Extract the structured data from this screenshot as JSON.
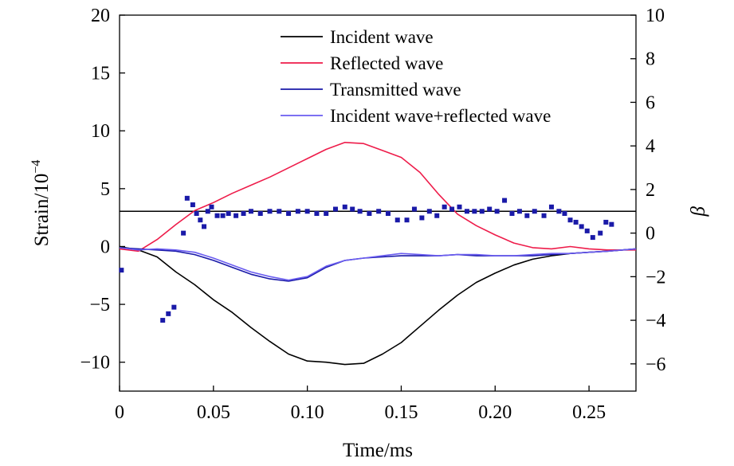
{
  "chart_data": {
    "type": "line",
    "xlabel": "Time/ms",
    "ylabel_left": "Strain/10",
    "ylabel_left_exponent": "−4",
    "ylabel_right": "β",
    "xlim": [
      0,
      0.275
    ],
    "ylim_left": [
      -12.5,
      20
    ],
    "ylim_right": [
      -7.25,
      10
    ],
    "x_ticks": [
      0,
      0.05,
      0.1,
      0.15,
      0.2,
      0.25
    ],
    "x_tick_labels": [
      "0",
      "0.05",
      "0.10",
      "0.15",
      "0.20",
      "0.25"
    ],
    "y_left_ticks": [
      -10,
      -5,
      0,
      5,
      10,
      15,
      20
    ],
    "y_left_tick_labels": [
      "−10",
      "−5",
      "0",
      "5",
      "10",
      "15",
      "20"
    ],
    "y_right_ticks": [
      -6,
      -4,
      -2,
      0,
      2,
      4,
      6,
      8,
      10
    ],
    "y_right_tick_labels": [
      "−6",
      "−4",
      "−2",
      "0",
      "2",
      "4",
      "6",
      "8",
      "10"
    ],
    "legend_position": "top-center",
    "reference_line": {
      "axis": "right",
      "value": 1.0,
      "color": "#000000"
    },
    "series": [
      {
        "name": "Incident wave",
        "axis": "left",
        "color": "#000000",
        "x": [
          0,
          0.01,
          0.02,
          0.03,
          0.04,
          0.05,
          0.06,
          0.07,
          0.08,
          0.09,
          0.1,
          0.11,
          0.12,
          0.13,
          0.14,
          0.15,
          0.16,
          0.17,
          0.18,
          0.19,
          0.2,
          0.21,
          0.22,
          0.23,
          0.24,
          0.25,
          0.26,
          0.275
        ],
        "y": [
          0,
          -0.3,
          -0.9,
          -2.2,
          -3.3,
          -4.6,
          -5.7,
          -7.0,
          -8.2,
          -9.3,
          -9.9,
          -10.0,
          -10.2,
          -10.1,
          -9.3,
          -8.3,
          -6.9,
          -5.5,
          -4.2,
          -3.1,
          -2.3,
          -1.6,
          -1.1,
          -0.8,
          -0.6,
          -0.5,
          -0.4,
          -0.2
        ]
      },
      {
        "name": "Reflected wave",
        "axis": "left",
        "color": "#ee1c4a",
        "x": [
          0,
          0.01,
          0.02,
          0.03,
          0.04,
          0.05,
          0.06,
          0.07,
          0.08,
          0.09,
          0.1,
          0.11,
          0.12,
          0.13,
          0.14,
          0.15,
          0.16,
          0.17,
          0.18,
          0.19,
          0.2,
          0.21,
          0.22,
          0.23,
          0.24,
          0.25,
          0.26,
          0.275
        ],
        "y": [
          -0.2,
          -0.4,
          0.6,
          1.9,
          3.1,
          3.8,
          4.6,
          5.3,
          6.0,
          6.8,
          7.6,
          8.4,
          9.0,
          8.9,
          8.3,
          7.7,
          6.4,
          4.5,
          2.8,
          1.8,
          1.0,
          0.3,
          -0.1,
          -0.2,
          0.0,
          -0.2,
          -0.3,
          -0.3
        ]
      },
      {
        "name": "Transmitted wave",
        "axis": "left",
        "color": "#1a1aa8",
        "x": [
          0,
          0.01,
          0.02,
          0.03,
          0.04,
          0.05,
          0.06,
          0.07,
          0.08,
          0.09,
          0.1,
          0.11,
          0.12,
          0.13,
          0.14,
          0.15,
          0.16,
          0.17,
          0.18,
          0.19,
          0.2,
          0.21,
          0.22,
          0.23,
          0.24,
          0.25,
          0.26,
          0.275
        ],
        "y": [
          -0.1,
          -0.2,
          -0.3,
          -0.4,
          -0.7,
          -1.2,
          -1.8,
          -2.4,
          -2.8,
          -3.0,
          -2.7,
          -1.8,
          -1.2,
          -1.0,
          -0.9,
          -0.8,
          -0.8,
          -0.8,
          -0.7,
          -0.8,
          -0.8,
          -0.8,
          -0.8,
          -0.7,
          -0.6,
          -0.5,
          -0.4,
          -0.2
        ]
      },
      {
        "name": "Incident wave+reflected wave",
        "axis": "left",
        "color": "#6a5cf0",
        "x": [
          0,
          0.01,
          0.02,
          0.03,
          0.04,
          0.05,
          0.06,
          0.07,
          0.08,
          0.09,
          0.1,
          0.11,
          0.12,
          0.13,
          0.14,
          0.15,
          0.16,
          0.17,
          0.18,
          0.19,
          0.2,
          0.21,
          0.22,
          0.23,
          0.24,
          0.25,
          0.26,
          0.275
        ],
        "y": [
          -0.1,
          -0.3,
          -0.2,
          -0.3,
          -0.5,
          -1.0,
          -1.6,
          -2.2,
          -2.6,
          -2.9,
          -2.6,
          -1.7,
          -1.2,
          -1.0,
          -0.8,
          -0.6,
          -0.7,
          -0.8,
          -0.7,
          -0.7,
          -0.8,
          -0.8,
          -0.7,
          -0.6,
          -0.6,
          -0.5,
          -0.4,
          -0.2
        ]
      },
      {
        "name": "β",
        "axis": "right",
        "type": "scatter",
        "color": "#1a1aa8",
        "x": [
          0.001,
          0.023,
          0.026,
          0.029,
          0.034,
          0.036,
          0.039,
          0.041,
          0.043,
          0.045,
          0.047,
          0.049,
          0.052,
          0.055,
          0.058,
          0.062,
          0.066,
          0.07,
          0.075,
          0.08,
          0.085,
          0.09,
          0.095,
          0.1,
          0.105,
          0.11,
          0.115,
          0.12,
          0.124,
          0.128,
          0.133,
          0.138,
          0.143,
          0.148,
          0.153,
          0.157,
          0.161,
          0.165,
          0.169,
          0.173,
          0.177,
          0.181,
          0.185,
          0.189,
          0.193,
          0.197,
          0.201,
          0.205,
          0.209,
          0.213,
          0.217,
          0.221,
          0.226,
          0.23,
          0.234,
          0.237,
          0.24,
          0.243,
          0.246,
          0.249,
          0.252,
          0.256,
          0.259,
          0.262
        ],
        "y": [
          -1.7,
          -4.0,
          -3.7,
          -3.4,
          0.0,
          1.6,
          1.3,
          0.9,
          0.6,
          0.3,
          1.0,
          1.2,
          0.8,
          0.8,
          0.9,
          0.8,
          0.9,
          1.0,
          0.9,
          1.0,
          1.0,
          0.9,
          1.0,
          1.0,
          0.9,
          0.9,
          1.1,
          1.2,
          1.1,
          1.0,
          0.9,
          1.0,
          0.9,
          0.6,
          0.6,
          1.1,
          0.7,
          1.0,
          0.8,
          1.2,
          1.1,
          1.2,
          1.0,
          1.0,
          1.0,
          1.1,
          1.0,
          1.5,
          0.9,
          1.0,
          0.8,
          1.0,
          0.8,
          1.2,
          1.0,
          0.9,
          0.6,
          0.5,
          0.3,
          0.1,
          -0.2,
          0.0,
          0.5,
          0.4
        ]
      }
    ]
  }
}
